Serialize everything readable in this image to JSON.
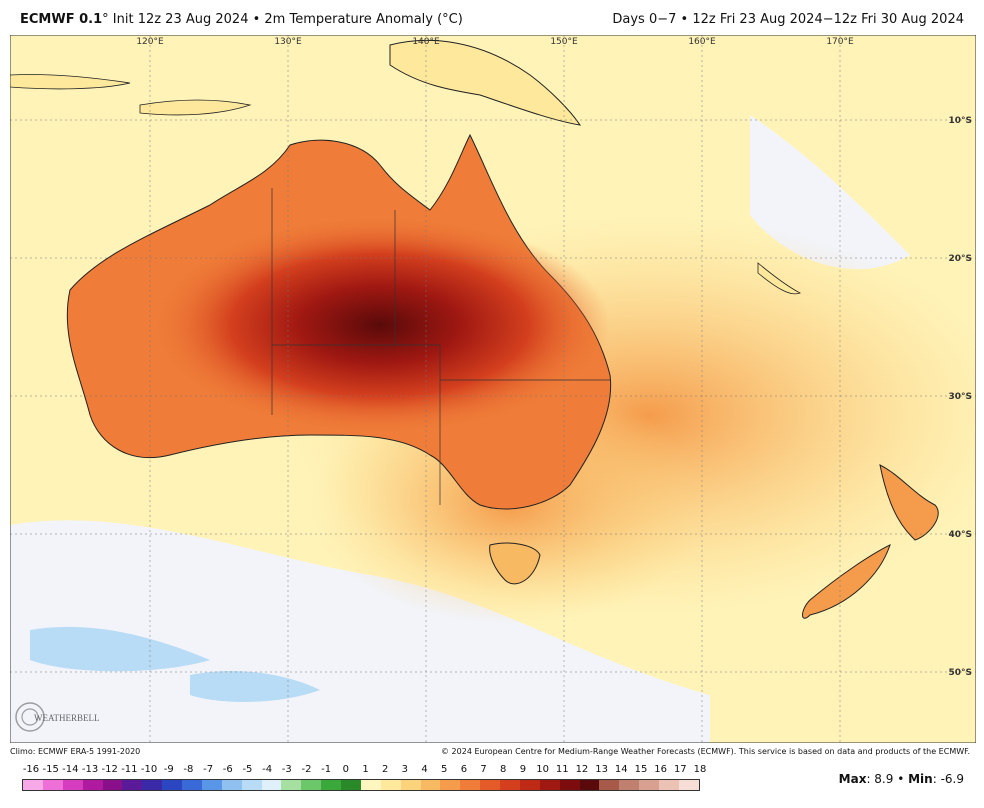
{
  "header": {
    "model": "ECMWF 0.1",
    "title_rest": "° Init 12z 23 Aug 2024 • 2m Temperature Anomaly (°C)",
    "valid": "Days 0−7 • 12z Fri 23 Aug 2024−12z Fri 30 Aug 2024"
  },
  "map": {
    "lon_labels": [
      "120°E",
      "130°E",
      "140°E",
      "150°E",
      "160°E",
      "170°E"
    ],
    "lat_labels": [
      "10°S",
      "20°S",
      "30°S",
      "40°S",
      "50°S"
    ],
    "logo_text": "WEATHERBELL"
  },
  "footer": {
    "climo": "Climo: ECMWF ERA-5 1991-2020",
    "copyright": "© 2024 European Centre for Medium-Range Weather Forecasts (ECMWF). This service is based on data and products of the ECMWF."
  },
  "colorbar": {
    "ticks": [
      "-16",
      "-15",
      "-14",
      "-13",
      "-12",
      "-11",
      "-10",
      "-9",
      "-8",
      "-7",
      "-6",
      "-5",
      "-4",
      "-3",
      "-2",
      "-1",
      "0",
      "1",
      "2",
      "3",
      "4",
      "5",
      "6",
      "7",
      "8",
      "9",
      "10",
      "11",
      "12",
      "13",
      "14",
      "15",
      "16",
      "17",
      "18"
    ],
    "colors": [
      "#f7a8e6",
      "#ee6fd8",
      "#d63cc0",
      "#b01aa0",
      "#8a0f8a",
      "#5a1a9a",
      "#3a2aa8",
      "#2a46c0",
      "#3a6ad8",
      "#5a96e8",
      "#8fc0f0",
      "#b8dcf6",
      "#dff0fa",
      "#a6e0a0",
      "#6cc66a",
      "#3aa83a",
      "#2a8a2a",
      "#fff6c0",
      "#fde89c",
      "#fbd37c",
      "#f8b963",
      "#f59c4c",
      "#ef7c38",
      "#e45a28",
      "#d4401e",
      "#bf2a16",
      "#a01812",
      "#7c0c0e",
      "#5a0a0a",
      "#a85a4a",
      "#c08070",
      "#d8a090",
      "#ecc2b4",
      "#f6ded6"
    ]
  },
  "stats": {
    "max_label": "Max",
    "max": "8.9",
    "min_label": "Min",
    "min": "-6.9"
  }
}
